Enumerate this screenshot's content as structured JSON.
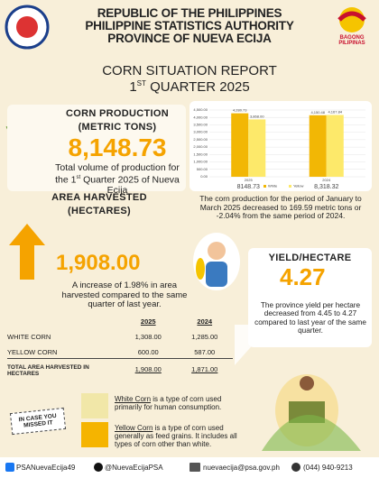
{
  "header": {
    "line1": "REPUBLIC OF THE PHILIPPINES",
    "line2": "PHILIPPINE STATISTICS AUTHORITY",
    "line3": "PROVINCE OF NUEVA ECIJA",
    "logo_right": "BAGONG PILIPINAS"
  },
  "report": {
    "title": "CORN SITUATION REPORT",
    "q_num": "1",
    "q_sup": "ST",
    "q_rest": "QUARTER 2025"
  },
  "production": {
    "title": "CORN PRODUCTION",
    "unit": "(METRIC TONS)",
    "value": "8,148.73",
    "desc_pre": "Total volume of production for the 1",
    "desc_sup": "st",
    "desc_post": "Quarter 2025 of Nueva Ecija"
  },
  "chart_data": {
    "type": "bar",
    "categories": [
      "2025",
      "2024"
    ],
    "series": [
      {
        "name": "White",
        "color": "#f2b705",
        "values": [
          4280.73,
          4150.48
        ],
        "value_labels": [
          "4,280.73",
          "4,150.48"
        ]
      },
      {
        "name": "Yellow",
        "color": "#fde96a",
        "values": [
          3868.0,
          4167.84
        ],
        "value_labels": [
          "3,868.00",
          "4,167.84"
        ]
      }
    ],
    "ylim": [
      0,
      4500
    ],
    "yticks": [
      {
        "value": 0,
        "label": "0.00"
      },
      {
        "value": 500,
        "label": "500.00"
      },
      {
        "value": 1000,
        "label": "1,000.00"
      },
      {
        "value": 1500,
        "label": "1,500.00"
      },
      {
        "value": 2000,
        "label": "2,000.00"
      },
      {
        "value": 2500,
        "label": "2,500.00"
      },
      {
        "value": 3000,
        "label": "3,000.00"
      },
      {
        "value": 3500,
        "label": "3,500.00"
      },
      {
        "value": 4000,
        "label": "4,000.00"
      },
      {
        "value": 4500,
        "label": "4,500.00"
      }
    ],
    "grid": true,
    "group_totals": [
      "8148.73",
      "8,318.32"
    ]
  },
  "production_note": "The corn production for the period of January to March 2025 decreased to 169.59 metric tons or -2.04% from the same period of 2024.",
  "area": {
    "title": "AREA HARVESTED",
    "unit": "(HECTARES)",
    "value": "1,908.00",
    "desc": "A increase of 1.98% in area harvested compared to the same quarter of last year."
  },
  "yield": {
    "title": "YIELD/HECTARE",
    "value": "4.27",
    "desc": "The province yield per hectare decreased from 4.45 to 4.27 compared to last year of the same quarter."
  },
  "table": {
    "columns": [
      "2025",
      "2024"
    ],
    "rows": [
      [
        "WHITE CORN",
        "1,308.00",
        "1,285.00"
      ],
      [
        "YELLOW CORN",
        "600.00",
        "587.00"
      ],
      [
        "TOTAL AREA HARVESTED IN HECTARES",
        "1,908.00",
        "1,871.00"
      ]
    ]
  },
  "missed": {
    "badge": "IN CASE YOU MISSED IT",
    "white_term": "White Corn",
    "white_desc": "is a type of corn used primarily for human consumption.",
    "yellow_term": "Yellow Corn",
    "yellow_desc": "is a type of corn used generally as feed grains. It includes all types of corn other than white."
  },
  "footer": [
    "PSANuevaEcija49",
    "@NuevaEcijaPSA",
    "nuevaecija@psa.gov.ph",
    "(044) 940-9213"
  ]
}
